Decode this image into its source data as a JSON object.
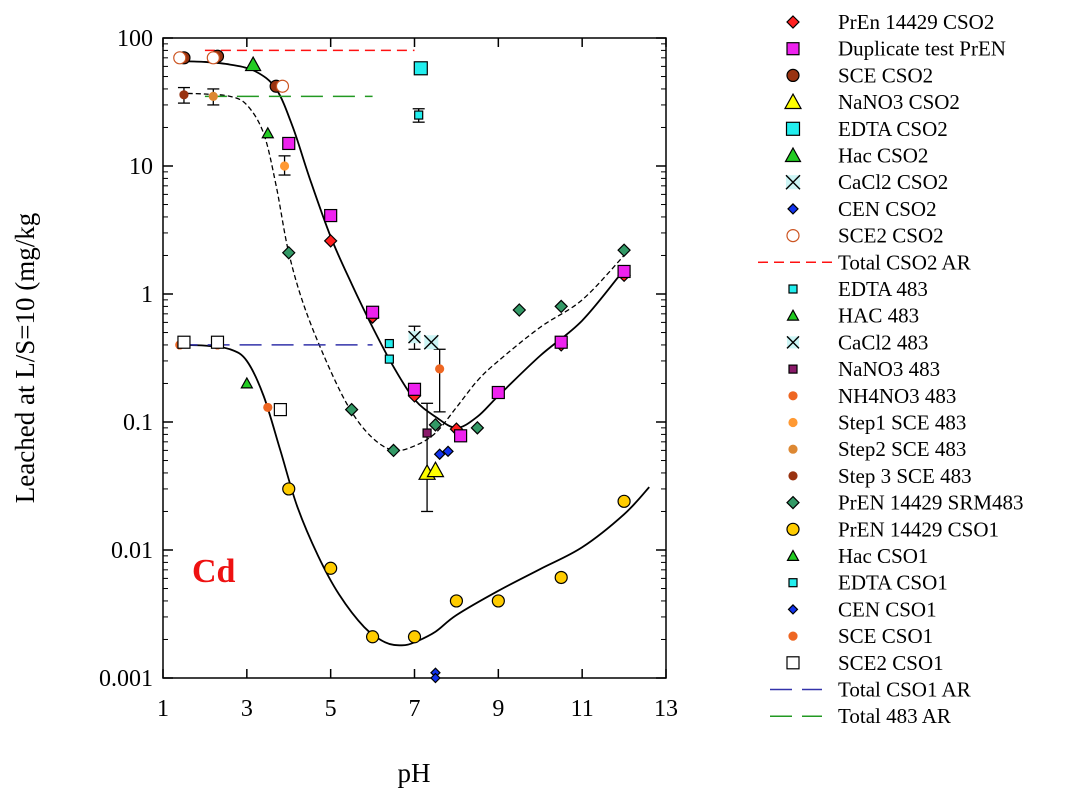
{
  "chart_data": {
    "type": "scatter",
    "title": "",
    "xlabel": "pH",
    "ylabel": "Leached at L/S=10 (mg/kg",
    "element_label": "Cd",
    "element_label_color": "#ee1111",
    "x_axis": {
      "min": 1,
      "max": 13,
      "ticks": [
        1,
        3,
        5,
        7,
        9,
        11,
        13
      ]
    },
    "y_axis": {
      "scale": "log",
      "min": 0.001,
      "max": 100,
      "ticks": [
        0.001,
        0.01,
        0.1,
        1,
        10,
        100
      ],
      "tick_labels": [
        "0.001",
        "0.01",
        "0.1",
        "1",
        "10",
        "100"
      ]
    },
    "legend_position": "right",
    "series": [
      {
        "name": "PrEn 14429 CSO2",
        "marker": "diamond",
        "size": 12,
        "fill": "#ff2020",
        "stroke": "#000000",
        "points": [
          [
            5.0,
            2.6
          ],
          [
            6.0,
            0.66
          ],
          [
            7.0,
            0.16
          ],
          [
            8.0,
            0.088
          ],
          [
            10.5,
            0.4
          ],
          [
            12.0,
            1.4
          ]
        ]
      },
      {
        "name": "Duplicate test PrEN",
        "marker": "square",
        "size": 12,
        "fill": "#ee22ee",
        "stroke": "#000000",
        "points": [
          [
            4.0,
            15.0
          ],
          [
            5.0,
            4.1
          ],
          [
            6.0,
            0.72
          ],
          [
            7.0,
            0.18
          ],
          [
            8.1,
            0.078
          ],
          [
            9.0,
            0.17
          ],
          [
            10.5,
            0.42
          ],
          [
            12.0,
            1.5
          ]
        ]
      },
      {
        "name": "SCE CSO2",
        "marker": "circle",
        "size": 12,
        "fill": "#993311",
        "stroke": "#000000",
        "points": [
          [
            1.5,
            70.0
          ],
          [
            2.3,
            72.0
          ],
          [
            3.7,
            42.0
          ]
        ]
      },
      {
        "name": "NaNO3 CSO2",
        "marker": "triangle",
        "size": 16,
        "fill": "#ffff00",
        "stroke": "#000000",
        "points": [
          [
            7.3,
            0.04
          ],
          [
            7.5,
            0.042
          ]
        ]
      },
      {
        "name": "EDTA CSO2",
        "marker": "square",
        "size": 13,
        "fill": "#22eeee",
        "stroke": "#000000",
        "points": [
          [
            7.15,
            58.0
          ]
        ]
      },
      {
        "name": "Hac CSO2",
        "marker": "triangle",
        "size": 15,
        "fill": "#22cc22",
        "stroke": "#000000",
        "points": [
          [
            3.15,
            62.0
          ]
        ]
      },
      {
        "name": "CaCl2 CSO2",
        "marker": "x",
        "size": 14,
        "fill": "#ccf5f5",
        "stroke": "#000000",
        "points": [
          [
            7.4,
            0.42
          ]
        ]
      },
      {
        "name": "CEN CSO2",
        "marker": "diamond",
        "size": 10,
        "fill": "#1133ee",
        "stroke": "#000000",
        "points": [
          [
            7.6,
            0.056
          ],
          [
            7.8,
            0.059
          ]
        ]
      },
      {
        "name": "SCE2 CSO2",
        "marker": "circle",
        "size": 12,
        "fill": "#ffffff",
        "stroke": "#cc5522",
        "points": [
          [
            1.4,
            70.0
          ],
          [
            2.2,
            70.0
          ],
          [
            3.85,
            42.0
          ]
        ]
      },
      {
        "name": "Total CSO2 AR",
        "line": "dash",
        "color": "#ff1111",
        "points": [
          [
            2.0,
            80.0
          ],
          [
            7.0,
            80.0
          ]
        ]
      },
      {
        "name": "EDTA 483",
        "marker": "square",
        "size": 8,
        "fill": "#22eeee",
        "stroke": "#000000",
        "points": [
          [
            6.4,
            0.41
          ],
          [
            6.4,
            0.31
          ],
          [
            7.1,
            25.0
          ]
        ]
      },
      {
        "name": "HAC 483",
        "marker": "triangle",
        "size": 11,
        "fill": "#22cc22",
        "stroke": "#000000",
        "points": [
          [
            3.5,
            18.0
          ]
        ]
      },
      {
        "name": "CaCl2 483",
        "marker": "x",
        "size": 12,
        "fill": "#ccf5f5",
        "stroke": "#000000",
        "points": [
          [
            7.0,
            0.46
          ]
        ]
      },
      {
        "name": "NaNO3 483",
        "marker": "square",
        "size": 8,
        "fill": "#8a1a6a",
        "stroke": "#000000",
        "points": [
          [
            7.3,
            0.082
          ]
        ]
      },
      {
        "name": "NH4NO3 483",
        "marker": "circle",
        "size": 8,
        "fill": "#ee6622",
        "stroke": "#ee6622",
        "points": [
          [
            7.6,
            0.26
          ]
        ]
      },
      {
        "name": "Step1 SCE 483",
        "marker": "circle",
        "size": 8,
        "fill": "#ff9933",
        "stroke": "#ff9933",
        "points": [
          [
            3.9,
            10.0
          ]
        ]
      },
      {
        "name": "Step2 SCE 483",
        "marker": "circle",
        "size": 8,
        "fill": "#dd8833",
        "stroke": "#dd8833",
        "points": [
          [
            2.2,
            35.0
          ]
        ]
      },
      {
        "name": "Step 3 SCE 483",
        "marker": "circle",
        "size": 8,
        "fill": "#993311",
        "stroke": "#993311",
        "points": [
          [
            1.5,
            36.0
          ]
        ]
      },
      {
        "name": "PrEN 14429 SRM483",
        "marker": "diamond",
        "size": 12,
        "fill": "#339966",
        "stroke": "#000000",
        "points": [
          [
            4.0,
            2.1
          ],
          [
            5.5,
            0.125
          ],
          [
            6.5,
            0.06
          ],
          [
            7.5,
            0.095
          ],
          [
            8.5,
            0.09
          ],
          [
            9.5,
            0.75
          ],
          [
            10.5,
            0.8
          ],
          [
            12.0,
            2.2
          ]
        ]
      },
      {
        "name": "PrEN 14429 CSO1",
        "marker": "circle",
        "size": 12,
        "fill": "#ffcc00",
        "stroke": "#000000",
        "points": [
          [
            4.0,
            0.03
          ],
          [
            5.0,
            0.0072
          ],
          [
            6.0,
            0.0021
          ],
          [
            7.0,
            0.0021
          ],
          [
            8.0,
            0.004
          ],
          [
            9.0,
            0.004
          ],
          [
            10.5,
            0.0061
          ],
          [
            12.0,
            0.024
          ]
        ]
      },
      {
        "name": "Hac CSO1",
        "marker": "triangle",
        "size": 11,
        "fill": "#22cc22",
        "stroke": "#000000",
        "points": [
          [
            3.0,
            0.2
          ]
        ]
      },
      {
        "name": "EDTA CSO1",
        "marker": "square",
        "size": 8,
        "fill": "#22eeee",
        "stroke": "#000000",
        "points": []
      },
      {
        "name": "CEN CSO1",
        "marker": "diamond",
        "size": 9,
        "fill": "#1133ee",
        "stroke": "#000000",
        "points": [
          [
            7.5,
            0.0011
          ],
          [
            7.5,
            0.001
          ]
        ]
      },
      {
        "name": "SCE CSO1",
        "marker": "circle",
        "size": 8,
        "fill": "#ee6622",
        "stroke": "#ee6622",
        "points": [
          [
            1.4,
            0.4
          ],
          [
            2.3,
            0.4
          ],
          [
            3.5,
            0.13
          ]
        ]
      },
      {
        "name": "SCE2 CSO1",
        "marker": "square",
        "size": 12,
        "fill": "#ffffff",
        "stroke": "#000000",
        "points": [
          [
            1.5,
            0.42
          ],
          [
            2.3,
            0.42
          ],
          [
            3.8,
            0.125
          ]
        ]
      },
      {
        "name": "Total CSO1 AR",
        "line": "longdash",
        "color": "#3333aa",
        "points": [
          [
            1.3,
            0.4
          ],
          [
            6.0,
            0.4
          ]
        ]
      },
      {
        "name": "Total 483 AR",
        "line": "longdash",
        "color": "#229922",
        "points": [
          [
            2.0,
            35.0
          ],
          [
            6.0,
            35.0
          ]
        ]
      }
    ],
    "error_bars": [
      {
        "x": 1.5,
        "y": 36.0,
        "low": 31.0,
        "high": 41.0
      },
      {
        "x": 2.2,
        "y": 35.0,
        "low": 30.0,
        "high": 40.0
      },
      {
        "x": 3.9,
        "y": 10.0,
        "low": 8.5,
        "high": 12.0
      },
      {
        "x": 7.1,
        "y": 25.0,
        "low": 22.0,
        "high": 28.0
      },
      {
        "x": 7.0,
        "y": 0.46,
        "low": 0.37,
        "high": 0.56
      },
      {
        "x": 7.3,
        "y": 0.082,
        "low": 0.02,
        "high": 0.14
      },
      {
        "x": 7.6,
        "y": 0.26,
        "low": 0.12,
        "high": 0.37
      }
    ],
    "fit_curves": [
      {
        "style": "solid",
        "points": [
          [
            1.4,
            66
          ],
          [
            2.0,
            65
          ],
          [
            2.6,
            62
          ],
          [
            3.2,
            55
          ],
          [
            3.7,
            40
          ],
          [
            4.1,
            20
          ],
          [
            4.5,
            8
          ],
          [
            5.0,
            2.8
          ],
          [
            5.5,
            1.2
          ],
          [
            6.0,
            0.55
          ],
          [
            6.5,
            0.27
          ],
          [
            7.0,
            0.15
          ],
          [
            7.5,
            0.11
          ],
          [
            8.0,
            0.09
          ],
          [
            8.5,
            0.11
          ],
          [
            9.0,
            0.16
          ],
          [
            10.0,
            0.33
          ],
          [
            11.0,
            0.62
          ],
          [
            12.0,
            1.55
          ]
        ]
      },
      {
        "style": "dashed",
        "points": [
          [
            1.4,
            37
          ],
          [
            2.0,
            36.5
          ],
          [
            2.6,
            35
          ],
          [
            3.0,
            30
          ],
          [
            3.4,
            18
          ],
          [
            3.7,
            7
          ],
          [
            4.0,
            2.1
          ],
          [
            4.4,
            0.75
          ],
          [
            5.0,
            0.25
          ],
          [
            5.5,
            0.12
          ],
          [
            6.0,
            0.075
          ],
          [
            6.5,
            0.06
          ],
          [
            7.0,
            0.065
          ],
          [
            7.5,
            0.082
          ],
          [
            8.0,
            0.13
          ],
          [
            8.5,
            0.21
          ],
          [
            9.0,
            0.3
          ],
          [
            10.0,
            0.55
          ],
          [
            11.0,
            0.9
          ],
          [
            12.0,
            2.0
          ]
        ]
      },
      {
        "style": "solid",
        "points": [
          [
            1.4,
            0.4
          ],
          [
            2.0,
            0.395
          ],
          [
            2.6,
            0.37
          ],
          [
            3.0,
            0.3
          ],
          [
            3.4,
            0.16
          ],
          [
            3.8,
            0.06
          ],
          [
            4.2,
            0.022
          ],
          [
            4.7,
            0.009
          ],
          [
            5.2,
            0.0045
          ],
          [
            5.8,
            0.0025
          ],
          [
            6.3,
            0.0019
          ],
          [
            6.7,
            0.0018
          ],
          [
            7.0,
            0.0019
          ],
          [
            7.5,
            0.0023
          ],
          [
            8.0,
            0.0031
          ],
          [
            9.0,
            0.0048
          ],
          [
            10.0,
            0.0071
          ],
          [
            11.0,
            0.0105
          ],
          [
            12.0,
            0.019
          ],
          [
            12.6,
            0.031
          ]
        ]
      }
    ]
  }
}
